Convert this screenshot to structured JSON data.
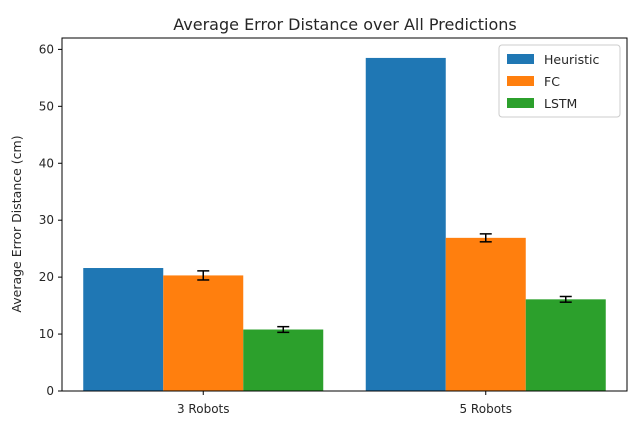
{
  "chart_data": {
    "type": "bar",
    "title": "Average Error Distance over All Predictions",
    "xlabel": "",
    "ylabel": "Average Error Distance (cm)",
    "categories": [
      "3 Robots",
      "5 Robots"
    ],
    "ylim": [
      0,
      62
    ],
    "yticks": [
      0,
      10,
      20,
      30,
      40,
      50,
      60
    ],
    "grid": false,
    "legend": "top-right",
    "series": [
      {
        "name": "Heuristic",
        "color": "#1f77b4",
        "values": [
          21.6,
          58.5
        ],
        "errors": [
          0,
          0
        ]
      },
      {
        "name": "FC",
        "color": "#ff7f0e",
        "values": [
          20.3,
          26.9
        ],
        "errors": [
          0.8,
          0.7
        ]
      },
      {
        "name": "LSTM",
        "color": "#2ca02c",
        "values": [
          10.8,
          16.1
        ],
        "errors": [
          0.5,
          0.5
        ]
      }
    ]
  }
}
